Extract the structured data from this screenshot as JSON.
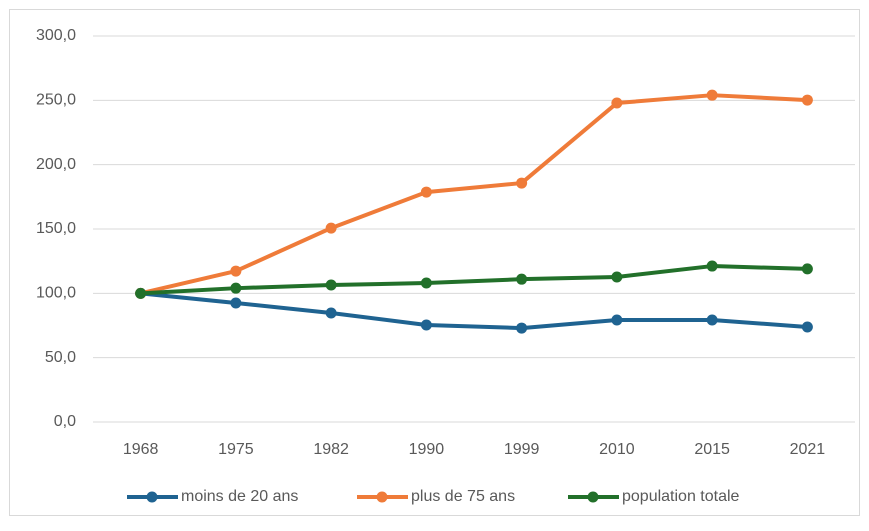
{
  "chart_data": {
    "type": "line",
    "categories": [
      "1968",
      "1975",
      "1982",
      "1990",
      "1999",
      "2010",
      "2015",
      "2021"
    ],
    "series": [
      {
        "name": "moins de 20 ans",
        "color": "#1f6391",
        "values": [
          100,
          92.5,
          84.7,
          75.4,
          73,
          79.3,
          79.3,
          73.8
        ]
      },
      {
        "name": "plus de 75 ans",
        "color": "#ef7b39",
        "values": [
          100,
          117.3,
          150.7,
          178.7,
          185.7,
          247.9,
          254,
          250.2
        ]
      },
      {
        "name": "population totale",
        "color": "#22702a",
        "values": [
          100,
          104,
          106.5,
          108,
          111,
          112.7,
          121.2,
          119
        ]
      }
    ],
    "ylim": [
      0,
      300
    ],
    "yticks": [
      {
        "value": 0,
        "label": "0,0"
      },
      {
        "value": 50,
        "label": "50,0"
      },
      {
        "value": 100,
        "label": "100,0"
      },
      {
        "value": 150,
        "label": "150,0"
      },
      {
        "value": 200,
        "label": "200,0"
      },
      {
        "value": 250,
        "label": "250,0"
      },
      {
        "value": 300,
        "label": "300,0"
      }
    ],
    "grid": true,
    "legend": "bottom"
  }
}
